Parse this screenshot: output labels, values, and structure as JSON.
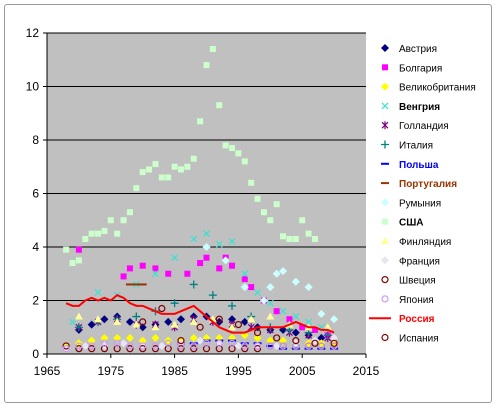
{
  "chart_data": {
    "type": "scatter",
    "title": "",
    "xlabel": "",
    "ylabel": "",
    "xlim": [
      1965,
      2015
    ],
    "ylim": [
      0,
      12
    ],
    "x_ticks": [
      "1965",
      "1975",
      "1985",
      "1995",
      "2005",
      "2015"
    ],
    "y_ticks": [
      "0",
      "2",
      "4",
      "6",
      "8",
      "10",
      "12"
    ],
    "grid": "horizontal",
    "legend_position": "right",
    "plot_background": "#c0c0c0",
    "series": [
      {
        "name": "Австрия",
        "marker": "diamond",
        "color": "#000080",
        "bold": false,
        "label_color": "#000000",
        "x": [
          1970,
          1972,
          1974,
          1976,
          1978,
          1980,
          1982,
          1984,
          1986,
          1988,
          1990,
          1992,
          1994,
          1996,
          1998,
          2000,
          2002,
          2004,
          2006,
          2008
        ],
        "y": [
          0.9,
          1.1,
          1.3,
          1.4,
          1.2,
          1.0,
          1.1,
          1.2,
          1.3,
          1.4,
          1.4,
          1.2,
          1.3,
          1.2,
          1.0,
          0.9,
          0.9,
          0.8,
          0.7,
          0.6
        ]
      },
      {
        "name": "Болгария",
        "marker": "square",
        "color": "#ff00ff",
        "bold": false,
        "label_color": "#000000",
        "x": [
          1970,
          1977,
          1978,
          1980,
          1982,
          1984,
          1987,
          1989,
          1990,
          1992,
          1993,
          1994,
          1996,
          1997,
          1999,
          2001,
          2003,
          2005,
          2007,
          2009
        ],
        "y": [
          3.9,
          2.9,
          3.2,
          3.3,
          3.2,
          3.0,
          3.0,
          3.4,
          3.6,
          3.2,
          3.6,
          3.3,
          2.8,
          2.5,
          2.0,
          1.6,
          1.3,
          1.0,
          0.9,
          0.7
        ]
      },
      {
        "name": "Великобритания",
        "marker": "diamond",
        "color": "#ffff00",
        "bold": false,
        "label_color": "#000000",
        "x": [
          1968,
          1970,
          1972,
          1974,
          1976,
          1978,
          1980,
          1982,
          1984,
          1986,
          1988,
          1990,
          1992,
          1994,
          1996,
          1998,
          2000,
          2002,
          2004,
          2006,
          2008,
          2010
        ],
        "y": [
          0.3,
          0.4,
          0.5,
          0.6,
          0.6,
          0.6,
          0.5,
          0.6,
          0.5,
          0.5,
          0.6,
          0.6,
          0.6,
          0.6,
          0.7,
          0.6,
          0.5,
          0.5,
          0.4,
          0.4,
          0.4,
          0.4
        ]
      },
      {
        "name": "Венгрия",
        "marker": "x",
        "color": "#40e0d0",
        "bold": true,
        "label_color": "#000000",
        "x": [
          1969,
          1973,
          1976,
          1979,
          1982,
          1985,
          1988,
          1990,
          1992,
          1994,
          1996,
          1998,
          2000,
          2002,
          2004,
          2006,
          2008
        ],
        "y": [
          1.2,
          2.3,
          2.2,
          2.6,
          3.0,
          3.6,
          4.3,
          4.5,
          4.1,
          4.2,
          3.0,
          2.3,
          1.9,
          1.6,
          1.4,
          1.2,
          1.0
        ]
      },
      {
        "name": "Голландия",
        "marker": "asterisk",
        "color": "#800080",
        "bold": false,
        "label_color": "#000000",
        "x": [
          1970,
          1973,
          1976,
          1979,
          1982,
          1985,
          1988,
          1991,
          1994,
          1997,
          2000,
          2003,
          2006,
          2009
        ],
        "y": [
          1.0,
          1.2,
          1.3,
          1.1,
          1.1,
          1.0,
          1.3,
          1.2,
          1.1,
          1.0,
          0.9,
          0.8,
          0.7,
          0.6
        ]
      },
      {
        "name": "Италия",
        "marker": "plus",
        "color": "#008080",
        "bold": false,
        "label_color": "#000000",
        "x": [
          1970,
          1973,
          1976,
          1979,
          1982,
          1985,
          1988,
          1991,
          1994,
          1997,
          2000,
          2003,
          2006,
          2009
        ],
        "y": [
          1.0,
          1.2,
          1.3,
          1.4,
          1.6,
          1.9,
          2.6,
          2.2,
          1.8,
          1.4,
          1.0,
          0.9,
          0.8,
          0.7
        ]
      },
      {
        "name": "Польша",
        "marker": "dash",
        "color": "#0000ff",
        "bold": true,
        "label_color": "#0000ff",
        "x": [
          1986,
          1988,
          1990,
          1992,
          1994,
          1996,
          1998,
          2000,
          2002,
          2004,
          2006,
          2008,
          2010
        ],
        "y": [
          0.4,
          0.4,
          0.5,
          0.5,
          0.5,
          0.4,
          0.4,
          0.3,
          0.2,
          0.2,
          0.2,
          0.2,
          0.2
        ]
      },
      {
        "name": "Португалия",
        "marker": "dash",
        "color": "#993300",
        "bold": true,
        "label_color": "#993300",
        "x": [
          1978,
          1979,
          1980
        ],
        "y": [
          2.6,
          2.6,
          2.6
        ]
      },
      {
        "name": "Румыния",
        "marker": "diamond",
        "color": "#ccffff",
        "bold": false,
        "label_color": "#000000",
        "x": [
          1990,
          1993,
          1996,
          1999,
          2000,
          2001,
          2002,
          2004,
          2006,
          2008,
          2010
        ],
        "y": [
          4.0,
          3.5,
          2.5,
          2.0,
          2.5,
          3.0,
          3.1,
          2.7,
          2.5,
          1.5,
          1.3
        ]
      },
      {
        "name": "США",
        "marker": "square",
        "color": "#ccffcc",
        "bold": true,
        "label_color": "#000000",
        "x": [
          1968,
          1969,
          1970,
          1971,
          1972,
          1973,
          1974,
          1975,
          1976,
          1977,
          1978,
          1979,
          1980,
          1981,
          1982,
          1983,
          1984,
          1985,
          1986,
          1987,
          1988,
          1989,
          1990,
          1991,
          1992,
          1993,
          1994,
          1995,
          1996,
          1997,
          1998,
          1999,
          2000,
          2001,
          2002,
          2003,
          2004,
          2005,
          2006,
          2007
        ],
        "y": [
          3.9,
          3.4,
          3.5,
          4.3,
          4.5,
          4.5,
          4.6,
          5.0,
          4.5,
          5.0,
          5.3,
          6.2,
          6.8,
          6.9,
          7.1,
          6.6,
          6.6,
          7.0,
          6.9,
          7.0,
          7.3,
          8.7,
          10.8,
          11.4,
          9.3,
          7.8,
          7.7,
          7.5,
          7.2,
          6.4,
          5.8,
          5.3,
          5.0,
          5.6,
          4.4,
          4.3,
          4.3,
          5.0,
          4.5,
          4.3
        ]
      },
      {
        "name": "Финляндия",
        "marker": "triangle",
        "color": "#ffff99",
        "bold": false,
        "label_color": "#000000",
        "x": [
          1970,
          1973,
          1976,
          1979,
          1982,
          1985,
          1988,
          1991,
          1994,
          1997,
          2000,
          2003,
          2006,
          2009
        ],
        "y": [
          1.4,
          1.3,
          1.2,
          1.1,
          1.0,
          1.1,
          1.2,
          1.3,
          1.0,
          1.3,
          1.4,
          1.1,
          1.0,
          1.0
        ]
      },
      {
        "name": "Франция",
        "marker": "diamond",
        "color": "#e6e6f0",
        "bold": false,
        "label_color": "#000000",
        "x": [
          1968,
          1971,
          1974,
          1977,
          1980,
          1983,
          1986,
          1989,
          1992,
          1995,
          1998,
          2001,
          2004,
          2007,
          2010
        ],
        "y": [
          0.2,
          0.3,
          0.3,
          0.4,
          0.3,
          0.3,
          0.4,
          0.5,
          0.4,
          0.3,
          0.3,
          0.3,
          0.4,
          0.5,
          0.6
        ]
      },
      {
        "name": "Швеция",
        "marker": "circle",
        "color": "#800000",
        "bold": false,
        "label_color": "#000000",
        "x": [
          1968,
          1970,
          1972,
          1974,
          1976,
          1978,
          1980,
          1982,
          1984,
          1986,
          1988,
          1990,
          1992,
          1994,
          1996,
          1998,
          2000,
          2002,
          2004,
          2006,
          2008,
          2010
        ],
        "y": [
          0.3,
          0.2,
          0.2,
          0.2,
          0.2,
          0.2,
          0.2,
          0.2,
          0.2,
          0.2,
          0.2,
          0.2,
          0.2,
          0.2,
          0.2,
          0.2,
          0.3,
          0.3,
          0.3,
          0.3,
          0.3,
          0.3
        ]
      },
      {
        "name": "Япония",
        "marker": "circle",
        "color": "#cc99ff",
        "bold": false,
        "label_color": "#000000",
        "x": [
          1968,
          1970,
          1972,
          1974,
          1976,
          1978,
          1980,
          1982,
          1984,
          1986,
          1988,
          1990,
          1992,
          1994,
          1996,
          1998,
          2000,
          2002,
          2004,
          2006,
          2008,
          2010
        ],
        "y": [
          0.2,
          0.3,
          0.3,
          0.4,
          0.4,
          0.3,
          0.3,
          0.3,
          0.4,
          0.3,
          0.3,
          0.4,
          0.4,
          0.4,
          0.3,
          0.3,
          0.3,
          0.3,
          0.3,
          0.3,
          0.3,
          0.3
        ]
      },
      {
        "name": "Россия",
        "marker": "line",
        "color": "#ff0000",
        "bold": true,
        "label_color": "#ff0000",
        "x": [
          1968,
          1969,
          1970,
          1971,
          1972,
          1973,
          1974,
          1975,
          1976,
          1977,
          1978,
          1979,
          1980,
          1981,
          1982,
          1983,
          1984,
          1985,
          1986,
          1987,
          1988,
          1989,
          1990,
          1991,
          1992,
          1993,
          1994,
          1995,
          1996,
          1997,
          1998,
          1999,
          2000,
          2001,
          2002,
          2003,
          2004,
          2005,
          2006,
          2007,
          2008,
          2009,
          2010
        ],
        "y": [
          1.9,
          1.8,
          1.8,
          2.0,
          2.1,
          2.0,
          2.1,
          2.0,
          2.2,
          2.1,
          1.9,
          1.8,
          1.8,
          1.7,
          1.6,
          1.5,
          1.5,
          1.5,
          1.6,
          1.7,
          1.8,
          1.6,
          1.4,
          1.2,
          1.0,
          0.9,
          0.8,
          0.8,
          0.8,
          0.9,
          1.0,
          1.0,
          1.0,
          1.0,
          1.0,
          1.1,
          1.2,
          1.1,
          1.0,
          1.0,
          0.9,
          0.9,
          0.8
        ]
      },
      {
        "name": "Испания",
        "marker": "circle",
        "color": "#800000",
        "bold": false,
        "label_color": "#000000",
        "x": [
          1980,
          1983,
          1986,
          1989,
          1992,
          1995,
          1998,
          2001,
          2004,
          2007,
          2010
        ],
        "y": [
          1.2,
          1.7,
          0.5,
          1.0,
          1.3,
          1.1,
          0.8,
          0.6,
          0.5,
          0.4,
          0.4
        ]
      }
    ]
  }
}
